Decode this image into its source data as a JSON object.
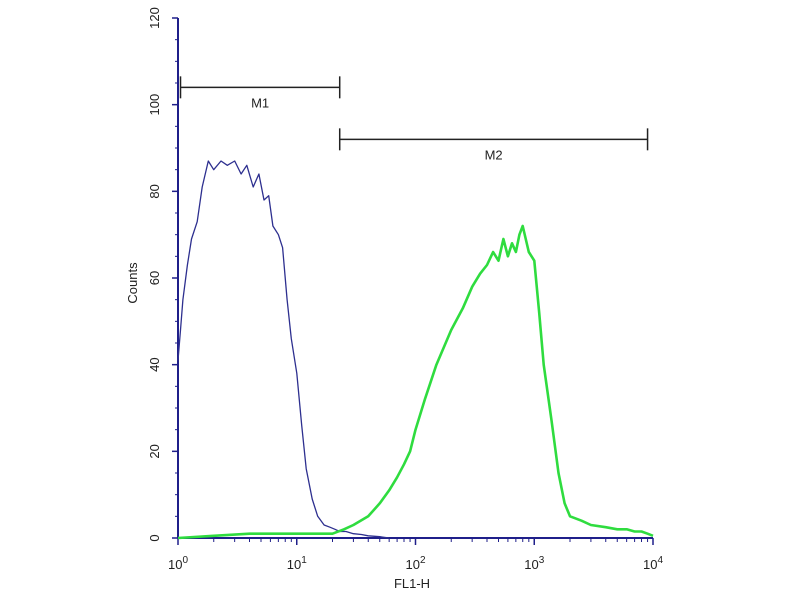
{
  "chart_data": {
    "type": "line",
    "title": "",
    "xlabel": "FL1-H",
    "ylabel": "Counts",
    "x_scale": "log",
    "xlim": [
      1,
      10000
    ],
    "ylim": [
      0,
      120
    ],
    "x_ticks": [
      {
        "value": 1,
        "base": "10",
        "exp": "0"
      },
      {
        "value": 10,
        "base": "10",
        "exp": "1"
      },
      {
        "value": 100,
        "base": "10",
        "exp": "2"
      },
      {
        "value": 1000,
        "base": "10",
        "exp": "3"
      },
      {
        "value": 10000,
        "base": "10",
        "exp": "4"
      }
    ],
    "y_ticks": [
      "0",
      "20",
      "40",
      "60",
      "80",
      "100",
      "120"
    ],
    "grid": false,
    "legend": "none",
    "series": [
      {
        "color": "#2d2f8f",
        "x": [
          1.0,
          1.05,
          1.1,
          1.2,
          1.3,
          1.45,
          1.6,
          1.8,
          2.0,
          2.3,
          2.6,
          3.0,
          3.4,
          3.8,
          4.3,
          4.8,
          5.3,
          5.8,
          6.3,
          7.0,
          7.6,
          8.3,
          9.0,
          10.0,
          11,
          12,
          13.5,
          15,
          17,
          19,
          21,
          23,
          26,
          30,
          35,
          40,
          50,
          60
        ],
        "y": [
          41,
          48,
          55,
          63,
          69,
          73,
          81,
          87,
          85,
          87,
          86,
          87,
          84,
          86,
          81,
          84,
          78,
          79,
          72,
          70,
          67,
          55,
          46,
          38,
          26,
          16,
          9,
          5,
          3,
          2.5,
          2,
          1.5,
          1.5,
          1,
          0.8,
          0.5,
          0.3,
          0
        ]
      },
      {
        "color": "#2fdc3f",
        "x": [
          1.0,
          2,
          4,
          8,
          15,
          20,
          25,
          30,
          40,
          50,
          60,
          70,
          80,
          90,
          100,
          120,
          150,
          200,
          250,
          300,
          350,
          400,
          450,
          500,
          550,
          600,
          650,
          700,
          750,
          800,
          900,
          1000,
          1100,
          1200,
          1400,
          1600,
          1800,
          2000,
          2500,
          3000,
          4000,
          5000,
          6000,
          7000,
          8000,
          9000,
          10000
        ],
        "y": [
          0,
          0.5,
          1,
          1,
          1,
          1,
          2,
          3,
          5,
          8,
          11,
          14,
          17,
          20,
          25,
          32,
          40,
          48,
          53,
          58,
          61,
          63,
          66,
          64,
          69,
          65,
          68,
          66,
          70,
          72,
          66,
          64,
          52,
          40,
          27,
          15,
          8,
          5,
          4,
          3,
          2.5,
          2,
          2,
          1.5,
          1.5,
          1,
          0.5
        ]
      }
    ],
    "markers": [
      {
        "label": "M1",
        "from": 1.05,
        "to": 23,
        "y": 104
      },
      {
        "label": "M2",
        "from": 23,
        "to": 9000,
        "y": 92
      }
    ]
  }
}
